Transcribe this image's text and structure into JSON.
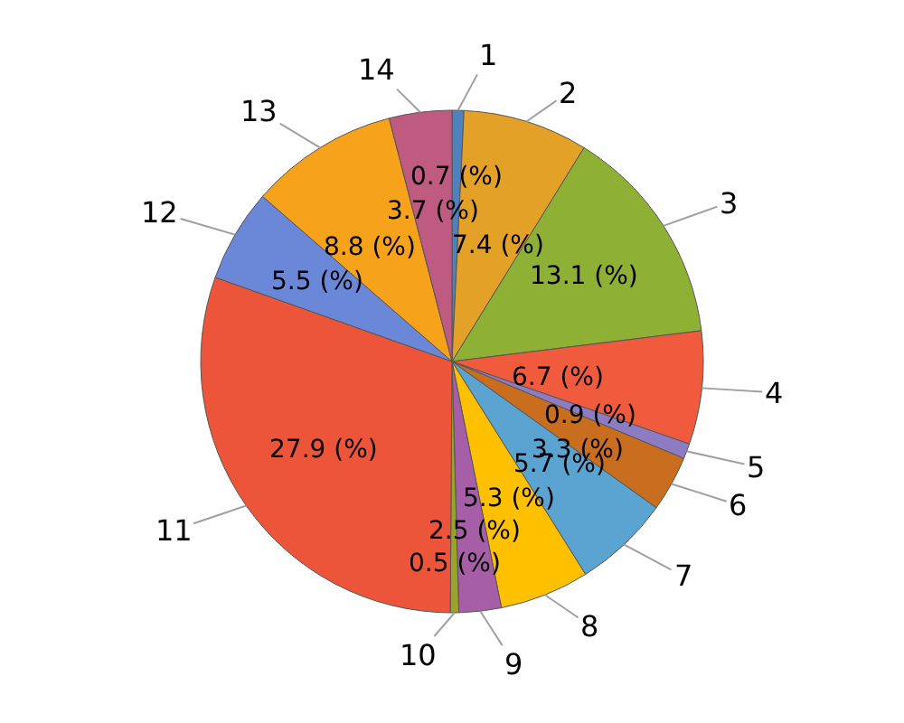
{
  "chart_data": {
    "type": "pie",
    "categories": [
      "1",
      "2",
      "3",
      "4",
      "5",
      "6",
      "7",
      "8",
      "9",
      "10",
      "11",
      "12",
      "13",
      "14"
    ],
    "values": [
      0.7,
      7.4,
      13.1,
      6.7,
      0.9,
      3.3,
      5.7,
      5.3,
      2.5,
      0.5,
      27.9,
      5.5,
      8.8,
      3.7
    ],
    "value_labels": [
      "0.7 (%)",
      "7.4 (%)",
      "13.1 (%)",
      "6.7 (%)",
      "0.9 (%)",
      "3.3 (%)",
      "5.7 (%)",
      "5.3 (%)",
      "2.5 (%)",
      "0.5 (%)",
      "27.9 (%)",
      "5.5 (%)",
      "8.8 (%)",
      "3.7 (%)"
    ],
    "colors": [
      "#4f81bd",
      "#e3a127",
      "#8db035",
      "#ef5b3c",
      "#8e7cc3",
      "#c96e1f",
      "#5ba3d0",
      "#ffc000",
      "#a65fa6",
      "#9aa42a",
      "#ec5539",
      "#6a87d8",
      "#f7a21b",
      "#bf5a80"
    ],
    "legend": false
  }
}
